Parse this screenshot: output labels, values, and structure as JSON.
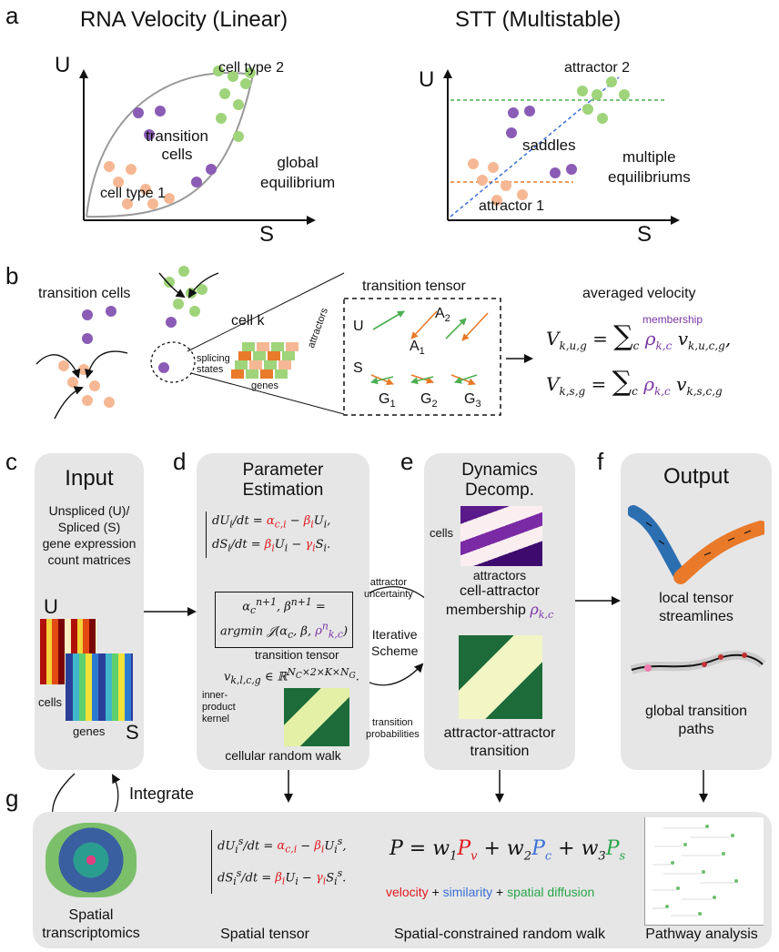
{
  "panels": {
    "a": "a",
    "b": "b",
    "c": "c",
    "d": "d",
    "e": "e",
    "f": "f",
    "g": "g"
  },
  "panel_a": {
    "left_title": "RNA Velocity (Linear)",
    "right_title": "STT (Multistable)",
    "axis_u": "U",
    "axis_s": "S",
    "left": {
      "cell_type_2": "cell type 2",
      "transition_cells": "transition\ncells",
      "global_equilibrium": "global\nequilibrium",
      "cell_type_1": "cell type 1"
    },
    "right": {
      "attractor_2": "attractor 2",
      "saddles": "saddles",
      "multiple_equilibriums": "multiple\nequilibriums",
      "attractor_1": "attractor 1"
    }
  },
  "panel_b": {
    "transition_cells": "transition cells",
    "cell_k": "cell k",
    "splicing_states": "splicing\nstates",
    "genes": "genes",
    "attractors": "attractors",
    "transition_tensor": "transition tensor",
    "averaged_velocity": "averaged velocity",
    "membership": "membership",
    "tensor_u": "U",
    "tensor_s": "S",
    "a1": "A",
    "a1_sub": "1",
    "a2": "A",
    "a2_sub": "2",
    "g1": "G",
    "g1_sub": "1",
    "g2": "G",
    "g2_sub": "2",
    "g3": "G",
    "g3_sub": "3"
  },
  "panel_c": {
    "title": "Input",
    "description": "Unspliced (U)/\nSpliced (S)\ngene expression\ncount matrices",
    "u": "U",
    "s": "S",
    "cells": "cells",
    "genes": "genes"
  },
  "panel_d": {
    "title": "Parameter\nEstimation",
    "transition_tensor": "transition tensor",
    "inner_product": "inner-\nproduct\nkernel",
    "cellular_random_walk": "cellular random walk"
  },
  "panel_e": {
    "title": "Dynamics\nDecomp.",
    "cells": "cells",
    "attractors": "attractors",
    "membership": "cell-attractor\nmembership",
    "transition": "attractor-attractor\ntransition",
    "attractor_uncertainty": "attractor\nuncertainty",
    "iterative_scheme": "Iterative\nScheme",
    "transition_probabilities": "transition\nprobabilities"
  },
  "panel_f": {
    "title": "Output",
    "local_streamlines": "local tensor\nstreamlines",
    "global_paths": "global transition\npaths"
  },
  "panel_g": {
    "integrate": "Integrate",
    "spatial_transcriptomics": "Spatial\ntranscriptomics",
    "spatial_tensor": "Spatial tensor",
    "random_walk": "Spatial-constrained random walk",
    "pathway_analysis": "Pathway analysis",
    "velocity": "velocity",
    "similarity": "similarity",
    "spatial_diffusion": "spatial diffusion",
    "plus": "+"
  },
  "colors": {
    "purple": "#8a5cb5",
    "green": "#9fd47a",
    "peach": "#f6b894",
    "orange": "#e87a2a",
    "box_gray": "#e6e6e6",
    "red": "#e0191f",
    "blue": "#3b6fd6",
    "dark_green": "#1e6b3a"
  }
}
